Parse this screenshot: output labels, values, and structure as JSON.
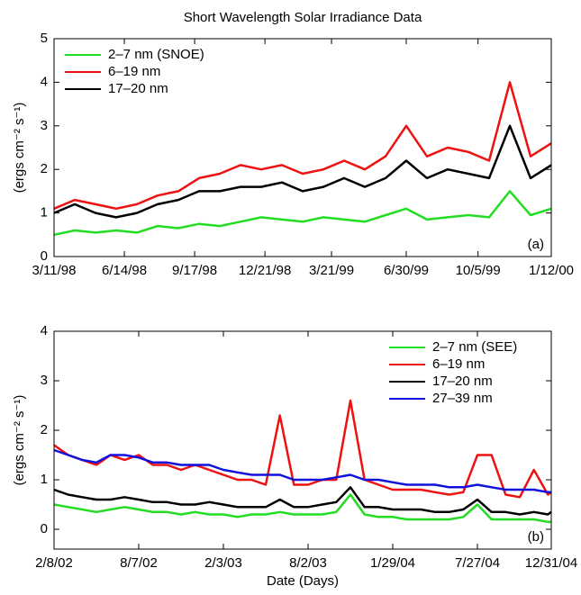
{
  "chart_data": [
    {
      "type": "line",
      "title": "Short Wavelength Solar Irradiance Data",
      "ylabel": "(ergs cm⁻² s⁻¹)",
      "annotation": "(a)",
      "legend": "upper left",
      "xlim": [
        "1998-03-11",
        "2000-01-12"
      ],
      "xticks": [
        {
          "value": "1998-03-11",
          "label": "3/11/98"
        },
        {
          "value": "1998-06-14",
          "label": "6/14/98"
        },
        {
          "value": "1998-09-17",
          "label": "9/17/98"
        },
        {
          "value": "1998-12-21",
          "label": "12/21/98"
        },
        {
          "value": "1999-03-21",
          "label": "3/21/99"
        },
        {
          "value": "1999-06-30",
          "label": "6/30/99"
        },
        {
          "value": "1999-10-05",
          "label": "10/5/99"
        },
        {
          "value": "2000-01-12",
          "label": "1/12/00"
        }
      ],
      "ylim": [
        0,
        5
      ],
      "yticks": [
        0,
        1,
        2,
        3,
        4,
        5
      ],
      "x": [
        "1998-03-11",
        "1998-04-08",
        "1998-05-06",
        "1998-06-03",
        "1998-07-01",
        "1998-07-29",
        "1998-08-26",
        "1998-09-23",
        "1998-10-21",
        "1998-11-18",
        "1998-12-16",
        "1999-01-13",
        "1999-02-10",
        "1999-03-10",
        "1999-04-07",
        "1999-05-05",
        "1999-06-02",
        "1999-06-30",
        "1999-07-28",
        "1999-08-25",
        "1999-09-22",
        "1999-10-20",
        "1999-11-17",
        "1999-12-15",
        "2000-01-12"
      ],
      "series": [
        {
          "name": "2–7 nm (SNOE)",
          "color": "#22dd22",
          "values": [
            0.5,
            0.6,
            0.55,
            0.6,
            0.55,
            0.7,
            0.65,
            0.75,
            0.7,
            0.8,
            0.9,
            0.85,
            0.8,
            0.9,
            0.85,
            0.8,
            0.95,
            1.1,
            0.85,
            0.9,
            0.95,
            0.9,
            1.5,
            0.95,
            1.1
          ]
        },
        {
          "name": "6–19 nm",
          "color": "#ee1111",
          "values": [
            1.1,
            1.3,
            1.2,
            1.1,
            1.2,
            1.4,
            1.5,
            1.8,
            1.9,
            2.1,
            2.0,
            2.1,
            1.9,
            2.0,
            2.2,
            2.0,
            2.3,
            3.0,
            2.3,
            2.5,
            2.4,
            2.2,
            4.0,
            2.3,
            2.6
          ]
        },
        {
          "name": "17–20 nm",
          "color": "#000000",
          "values": [
            1.0,
            1.2,
            1.0,
            0.9,
            1.0,
            1.2,
            1.3,
            1.5,
            1.5,
            1.6,
            1.6,
            1.7,
            1.5,
            1.6,
            1.8,
            1.6,
            1.8,
            2.2,
            1.8,
            2.0,
            1.9,
            1.8,
            3.0,
            1.8,
            2.1
          ]
        }
      ]
    },
    {
      "type": "line",
      "xlabel": "Date (Days)",
      "ylabel": "(ergs cm⁻² s⁻¹)",
      "annotation": "(b)",
      "legend": "upper right",
      "xlim": [
        "2002-02-08",
        "2004-12-31"
      ],
      "xticks": [
        {
          "value": "2002-02-08",
          "label": "2/8/02"
        },
        {
          "value": "2002-08-07",
          "label": "8/7/02"
        },
        {
          "value": "2003-02-03",
          "label": "2/3/03"
        },
        {
          "value": "2003-08-02",
          "label": "8/2/03"
        },
        {
          "value": "2004-01-29",
          "label": "1/29/04"
        },
        {
          "value": "2004-07-27",
          "label": "7/27/04"
        },
        {
          "value": "2004-12-31",
          "label": "12/31/04"
        }
      ],
      "ylim": [
        -0.4,
        4
      ],
      "yticks": [
        0,
        1,
        2,
        3,
        4
      ],
      "x": [
        "2002-02-08",
        "2002-03-10",
        "2002-04-09",
        "2002-05-09",
        "2002-06-08",
        "2002-07-08",
        "2002-08-07",
        "2002-09-06",
        "2002-10-06",
        "2002-11-05",
        "2002-12-05",
        "2003-01-04",
        "2003-02-03",
        "2003-03-05",
        "2003-04-04",
        "2003-05-04",
        "2003-06-03",
        "2003-07-03",
        "2003-08-02",
        "2003-09-01",
        "2003-10-01",
        "2003-10-31",
        "2003-11-30",
        "2003-12-30",
        "2004-01-29",
        "2004-02-28",
        "2004-03-29",
        "2004-04-28",
        "2004-05-28",
        "2004-06-27",
        "2004-07-27",
        "2004-08-26",
        "2004-09-25",
        "2004-10-25",
        "2004-11-24",
        "2004-12-24",
        "2004-12-31"
      ],
      "series": [
        {
          "name": "2–7 nm (SEE)",
          "color": "#22dd22",
          "values": [
            0.5,
            0.45,
            0.4,
            0.35,
            0.4,
            0.45,
            0.4,
            0.35,
            0.35,
            0.3,
            0.35,
            0.3,
            0.3,
            0.25,
            0.3,
            0.3,
            0.35,
            0.3,
            0.3,
            0.3,
            0.35,
            0.7,
            0.3,
            0.25,
            0.25,
            0.2,
            0.2,
            0.2,
            0.2,
            0.25,
            0.5,
            0.2,
            0.2,
            0.2,
            0.2,
            0.15,
            0.15
          ]
        },
        {
          "name": "6–19 nm",
          "color": "#ee1111",
          "values": [
            1.7,
            1.5,
            1.4,
            1.3,
            1.5,
            1.4,
            1.5,
            1.3,
            1.3,
            1.2,
            1.3,
            1.2,
            1.1,
            1.0,
            1.0,
            0.9,
            2.3,
            0.9,
            0.9,
            1.0,
            1.0,
            2.6,
            1.0,
            0.9,
            0.8,
            0.8,
            0.8,
            0.75,
            0.7,
            0.75,
            1.5,
            1.5,
            0.7,
            0.65,
            1.2,
            0.7,
            0.75
          ]
        },
        {
          "name": "17–20 nm",
          "color": "#000000",
          "values": [
            0.8,
            0.7,
            0.65,
            0.6,
            0.6,
            0.65,
            0.6,
            0.55,
            0.55,
            0.5,
            0.5,
            0.55,
            0.5,
            0.45,
            0.45,
            0.45,
            0.6,
            0.45,
            0.45,
            0.5,
            0.55,
            0.85,
            0.45,
            0.45,
            0.4,
            0.4,
            0.4,
            0.35,
            0.35,
            0.4,
            0.6,
            0.35,
            0.35,
            0.3,
            0.35,
            0.3,
            0.35
          ]
        },
        {
          "name": "27–39 nm",
          "color": "#1111dd",
          "values": [
            1.6,
            1.5,
            1.4,
            1.35,
            1.5,
            1.5,
            1.45,
            1.35,
            1.35,
            1.3,
            1.3,
            1.3,
            1.2,
            1.15,
            1.1,
            1.1,
            1.1,
            1.0,
            1.0,
            1.0,
            1.05,
            1.1,
            1.0,
            1.0,
            0.95,
            0.9,
            0.9,
            0.9,
            0.85,
            0.85,
            0.9,
            0.85,
            0.8,
            0.8,
            0.8,
            0.75,
            0.75
          ]
        }
      ]
    }
  ]
}
